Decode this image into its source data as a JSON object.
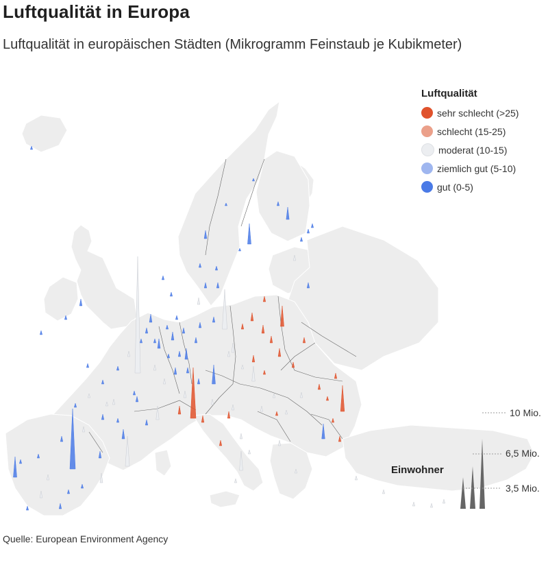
{
  "title": "Luftqualität in Europa",
  "subtitle": "Luftqualität in europäischen Städten (Mikrogramm Feinstaub je Kubikmeter)",
  "source": "Quelle: European Environment Agency",
  "legend": {
    "title": "Luftqualität",
    "items": [
      {
        "label": "sehr schlecht (>25)",
        "color": "#e0522c"
      },
      {
        "label": "schlecht (15-25)",
        "color": "#eba08a"
      },
      {
        "label": "moderat (10-15)",
        "color": "#eceef1"
      },
      {
        "label": "ziemlich gut (5-10)",
        "color": "#9fb6ef"
      },
      {
        "label": "gut (0-5)",
        "color": "#4a7ae6"
      }
    ]
  },
  "size_legend": {
    "title": "Einwohner",
    "labels": [
      "10 Mio.",
      "6,5 Mio.",
      "3,5 Mio."
    ],
    "color": "#666666"
  },
  "map_colors": {
    "land": "#ededed",
    "border": "#666666",
    "sea": "#ffffff"
  }
}
